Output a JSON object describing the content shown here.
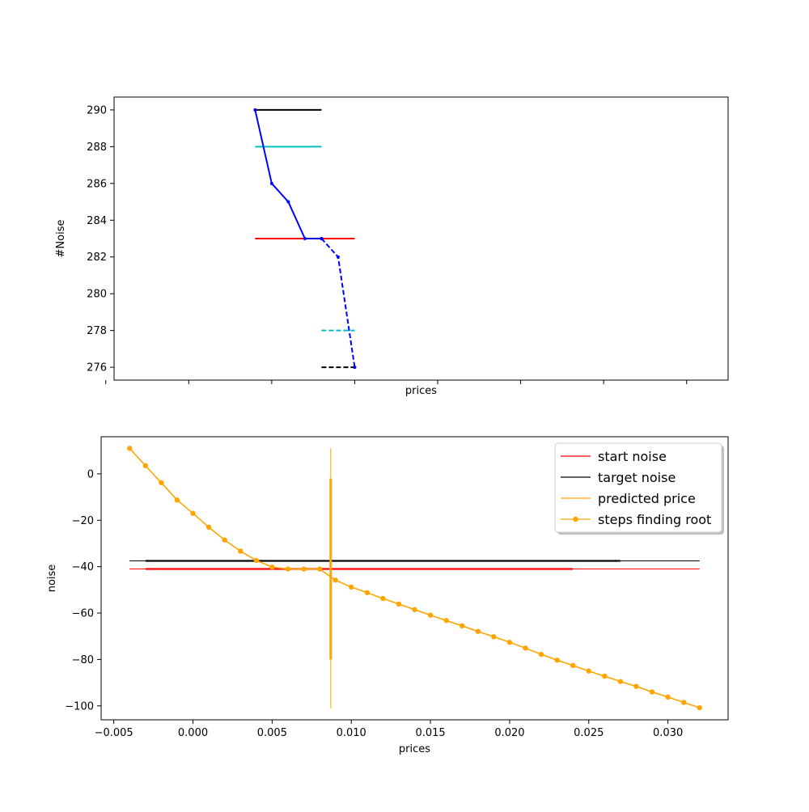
{
  "chart_data": [
    {
      "type": "line",
      "xlabel": "prices",
      "ylabel": "#Noise",
      "xlim": [
        -0.0045,
        0.0325
      ],
      "ylim": [
        275.3,
        290.7
      ],
      "xticks": [
        -0.005,
        0.0,
        0.005,
        0.01,
        0.015,
        0.02,
        0.025,
        0.03
      ],
      "yticks": [
        276,
        278,
        280,
        282,
        284,
        286,
        288,
        290
      ],
      "ytick_labels": [
        "276",
        "278",
        "280",
        "282",
        "284",
        "286",
        "288",
        "290"
      ],
      "x_tick_labels_shown": false,
      "grid": false,
      "series": [
        {
          "color": "#0000ff",
          "style": "solid",
          "marker": "dot",
          "x": [
            0.004,
            0.005,
            0.006,
            0.007,
            0.008
          ],
          "y": [
            290,
            286,
            285,
            283,
            283
          ]
        },
        {
          "color": "#0000ff",
          "style": "dashed",
          "marker": "dot",
          "x": [
            0.008,
            0.009,
            0.01
          ],
          "y": [
            283,
            282,
            276
          ]
        }
      ],
      "hlines": [
        {
          "y": 290,
          "x": [
            0.004,
            0.008
          ],
          "color": "#000000",
          "style": "solid"
        },
        {
          "y": 288,
          "x": [
            0.004,
            0.008
          ],
          "color": "#00bfbf",
          "style": "solid"
        },
        {
          "y": 283,
          "x": [
            0.004,
            0.01
          ],
          "color": "#ff0000",
          "style": "solid"
        },
        {
          "y": 278,
          "x": [
            0.008,
            0.01
          ],
          "color": "#00bfbf",
          "style": "dashed"
        },
        {
          "y": 276,
          "x": [
            0.008,
            0.01
          ],
          "color": "#000000",
          "style": "dashed"
        }
      ]
    },
    {
      "type": "line",
      "xlabel": "prices",
      "ylabel": "noise",
      "xlim": [
        -0.0058,
        0.0338
      ],
      "ylim": [
        -106,
        16
      ],
      "xticks": [
        -0.005,
        0.0,
        0.005,
        0.01,
        0.015,
        0.02,
        0.025,
        0.03
      ],
      "xtick_labels": [
        "−0.005",
        "0.000",
        "0.005",
        "0.010",
        "0.015",
        "0.020",
        "0.025",
        "0.030"
      ],
      "yticks": [
        0,
        -20,
        -40,
        -60,
        -80,
        -100
      ],
      "ytick_labels": [
        "0",
        "−20",
        "−40",
        "−60",
        "−80",
        "−100"
      ],
      "grid": false,
      "legend": {
        "placement": "upper right",
        "entries": [
          {
            "label": "start noise",
            "color": "#ff0000",
            "marker": false
          },
          {
            "label": "target noise",
            "color": "#000000",
            "marker": false
          },
          {
            "label": "predicted price",
            "color": "#ffa500",
            "marker": false
          },
          {
            "label": "steps finding root",
            "color": "#ffa500",
            "marker": true
          }
        ]
      },
      "start_noise": {
        "y": -41,
        "x": [
          -0.004,
          0.032
        ],
        "color": "#ff0000"
      },
      "target_noise": {
        "y": -37.5,
        "x": [
          -0.004,
          0.032
        ],
        "color": "#000000"
      },
      "predicted_price": {
        "x": 0.0087,
        "y": [
          -101,
          11
        ],
        "color": "#ffa500"
      },
      "steps_finding_root": {
        "color": "#ffa500",
        "x": [
          -0.004,
          -0.003,
          -0.002,
          -0.001,
          0.0,
          0.001,
          0.002,
          0.003,
          0.004,
          0.005,
          0.006,
          0.007,
          0.008,
          0.009,
          0.01,
          0.011,
          0.012,
          0.013,
          0.014,
          0.015,
          0.016,
          0.017,
          0.018,
          0.019,
          0.02,
          0.021,
          0.022,
          0.023,
          0.024,
          0.025,
          0.026,
          0.027,
          0.028,
          0.029,
          0.03,
          0.031,
          0.032
        ],
        "y": [
          11,
          3.5,
          -3.8,
          -11.3,
          -17,
          -23,
          -28.5,
          -33.3,
          -37.3,
          -40.2,
          -41,
          -41,
          -41,
          -45.8,
          -48.8,
          -51.2,
          -53.7,
          -56.1,
          -58.5,
          -60.9,
          -63.2,
          -65.5,
          -67.9,
          -70.2,
          -72.6,
          -75.1,
          -77.8,
          -80.3,
          -82.6,
          -85,
          -87.2,
          -89.5,
          -91.6,
          -94,
          -96.2,
          -98.5,
          -100.8
        ]
      }
    }
  ]
}
